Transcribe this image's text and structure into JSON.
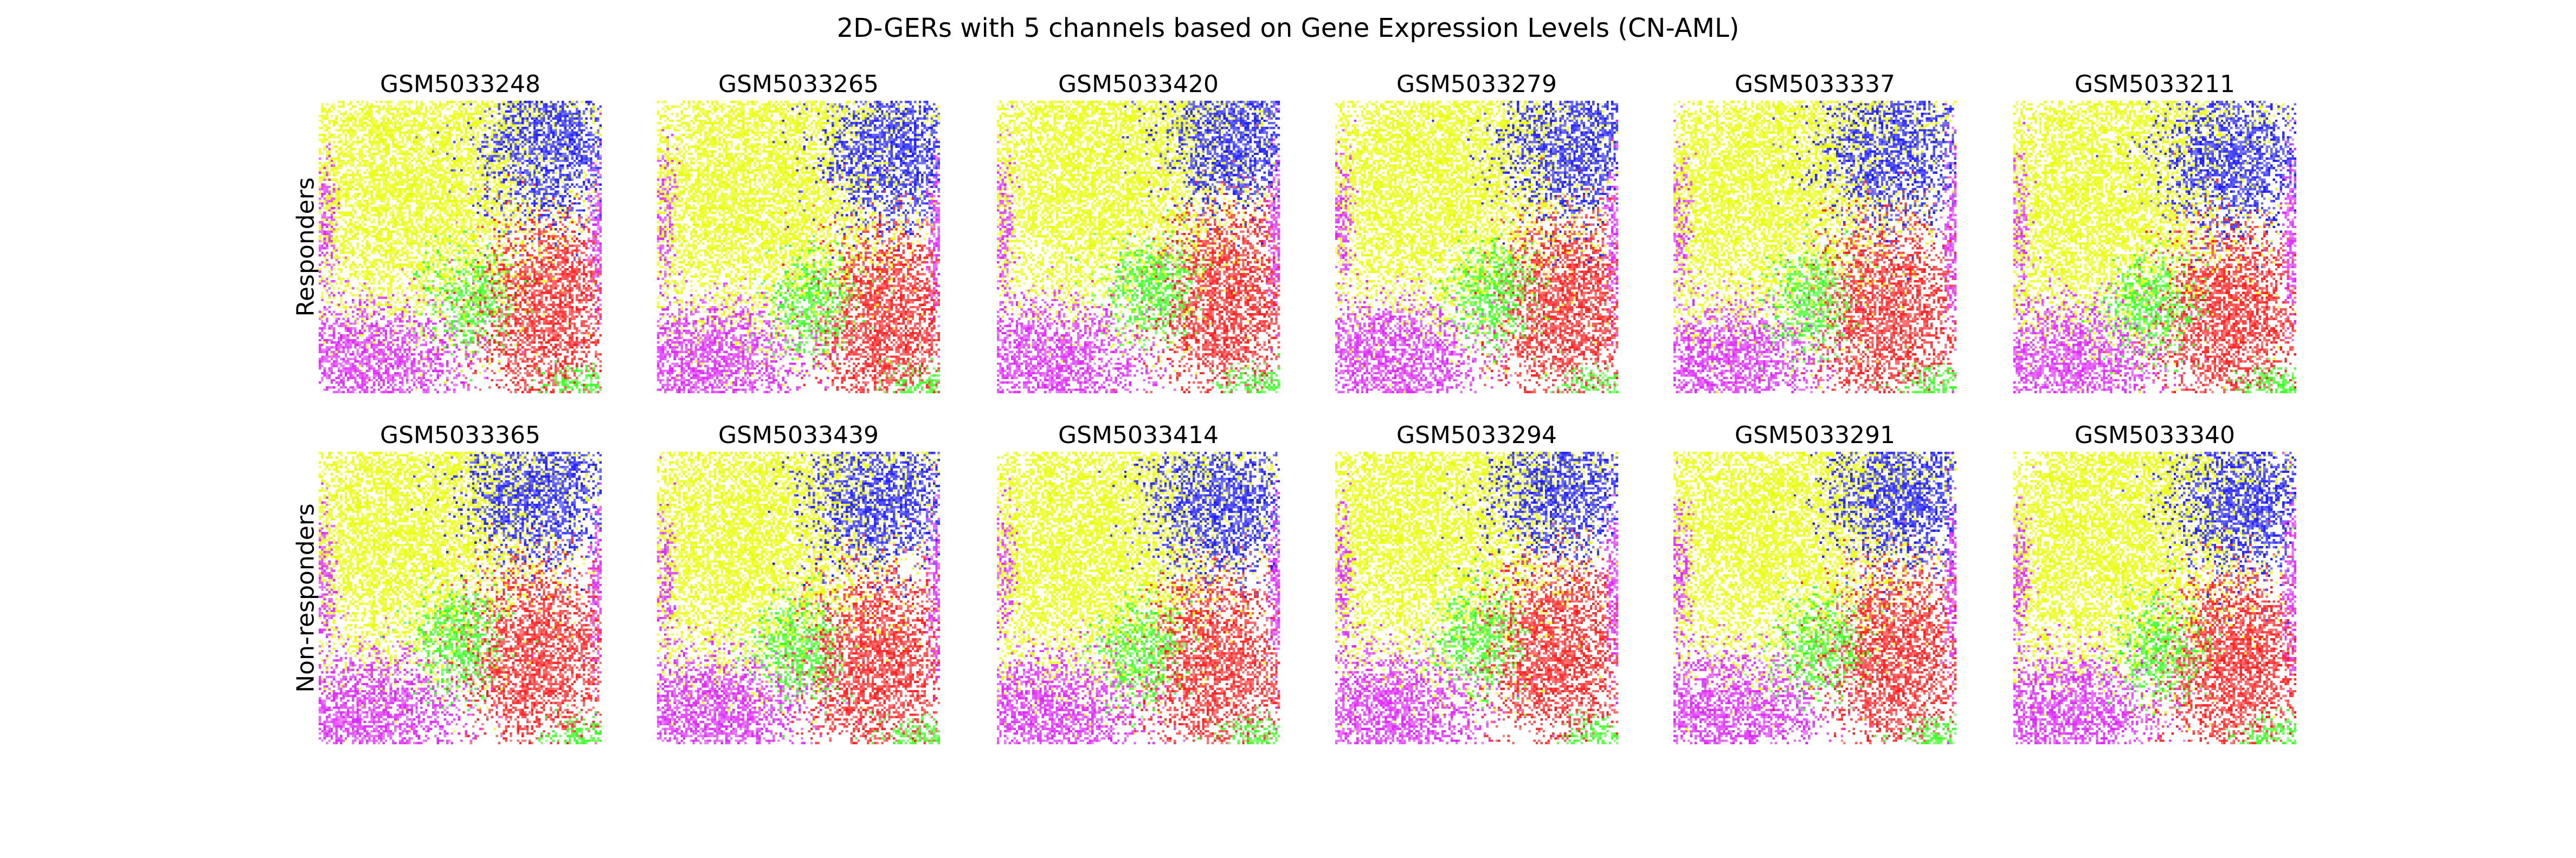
{
  "figure": {
    "title": "2D-GERs with 5 channels based on Gene Expression Levels (CN-AML)",
    "rows": [
      {
        "label": "Responders",
        "samples": [
          "GSM5033248",
          "GSM5033265",
          "GSM5033420",
          "GSM5033279",
          "GSM5033337",
          "GSM5033211"
        ]
      },
      {
        "label": "Non-responders",
        "samples": [
          "GSM5033365",
          "GSM5033439",
          "GSM5033414",
          "GSM5033294",
          "GSM5033291",
          "GSM5033340"
        ]
      }
    ],
    "channel_colors": {
      "yellow": "#e8ff00",
      "blue": "#1a1aff",
      "red": "#ff1a1a",
      "green": "#33ff1a",
      "magenta": "#dd22ff",
      "background": "#ffffff"
    }
  }
}
